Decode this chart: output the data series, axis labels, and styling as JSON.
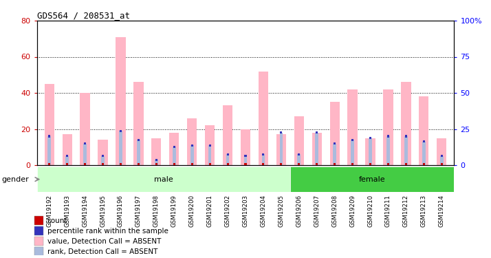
{
  "title": "GDS564 / 208531_at",
  "samples": [
    "GSM19192",
    "GSM19193",
    "GSM19194",
    "GSM19195",
    "GSM19196",
    "GSM19197",
    "GSM19198",
    "GSM19199",
    "GSM19200",
    "GSM19201",
    "GSM19202",
    "GSM19203",
    "GSM19204",
    "GSM19205",
    "GSM19206",
    "GSM19207",
    "GSM19208",
    "GSM19209",
    "GSM19210",
    "GSM19211",
    "GSM19212",
    "GSM19213",
    "GSM19214"
  ],
  "pink_values": [
    45,
    17,
    40,
    14,
    71,
    46,
    15,
    18,
    26,
    22,
    33,
    20,
    52,
    17,
    27,
    18,
    35,
    42,
    15,
    42,
    46,
    38,
    15
  ],
  "blue_rank_values": [
    16,
    5,
    12,
    5,
    19,
    14,
    3,
    10,
    11,
    11,
    6,
    5,
    6,
    18,
    6,
    18,
    12,
    14,
    15,
    16,
    16,
    13,
    5
  ],
  "gender": [
    "male",
    "male",
    "male",
    "male",
    "male",
    "male",
    "male",
    "male",
    "male",
    "male",
    "male",
    "male",
    "male",
    "male",
    "female",
    "female",
    "female",
    "female",
    "female",
    "female",
    "female",
    "female",
    "female"
  ],
  "male_count": 14,
  "female_count": 9,
  "ylim_left": [
    0,
    80
  ],
  "ylim_right": [
    0,
    100
  ],
  "yticks_left": [
    0,
    20,
    40,
    60,
    80
  ],
  "yticks_right": [
    0,
    25,
    50,
    75,
    100
  ],
  "ytick_labels_left": [
    "0",
    "20",
    "40",
    "60",
    "80"
  ],
  "ytick_labels_right": [
    "0",
    "25",
    "50",
    "75",
    "100%"
  ],
  "dotted_lines": [
    20,
    40,
    60
  ],
  "pink_color": "#FFB6C6",
  "red_color": "#CC0000",
  "blue_color": "#3333BB",
  "lightblue_color": "#AABBDD",
  "male_bg_light": "#CCFFCC",
  "male_bg_dark": "#44CC44",
  "female_bg": "#44CC44",
  "female_bg_light": "#CCFFCC",
  "tick_bg_color": "#CCCCCC",
  "gender_label": "gender",
  "legend_items": [
    {
      "color": "#CC0000",
      "label": "count"
    },
    {
      "color": "#3333BB",
      "label": "percentile rank within the sample"
    },
    {
      "color": "#FFB6C6",
      "label": "value, Detection Call = ABSENT"
    },
    {
      "color": "#AABBDD",
      "label": "rank, Detection Call = ABSENT"
    }
  ]
}
